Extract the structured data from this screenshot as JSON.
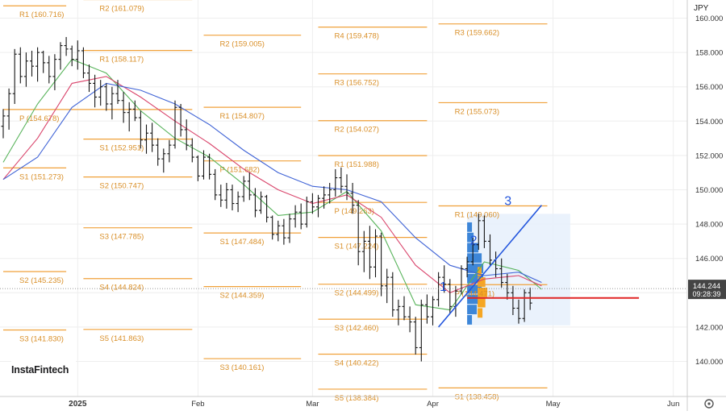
{
  "currency_label": "JPY",
  "watermark": "InstaFintech",
  "current_price": "144.244",
  "countdown": "09:28:39",
  "settings_icon": "gear-icon",
  "colors": {
    "pivot": "#f0a13a",
    "pivot_text": "#d98f28",
    "ma_fast": "#57b35a",
    "ma_mid": "#d9446b",
    "ma_slow": "#3f63d6",
    "candle": "#141414",
    "profile_blue": "#3d86d8",
    "profile_orange": "#f5a623",
    "channel": "#2255dd",
    "poc": "#e02424",
    "price_badge": "#444444"
  },
  "chart_data": {
    "type": "ohlc",
    "title": "",
    "xlabel": "",
    "ylabel": "",
    "ylim": [
      138.4,
      161.0
    ],
    "yticks": [
      "140.000",
      "142.000",
      "144.000",
      "146.000",
      "148.000",
      "150.000",
      "152.000",
      "154.000",
      "156.000",
      "158.000",
      "160.000"
    ],
    "x_labels": [
      "2025",
      "Feb",
      "Mar",
      "Apr",
      "May",
      "Jun"
    ],
    "x_label_bars": [
      13,
      34,
      54,
      75,
      96,
      117
    ],
    "pivots": [
      {
        "label": "R1 (160.716)",
        "value": 160.716,
        "b0": 0,
        "b1": 11
      },
      {
        "label": "R2 (161.079)",
        "value": 161.079,
        "b0": 14,
        "b1": 33
      },
      {
        "label": "R1 (158.117)",
        "value": 158.117,
        "b0": 14,
        "b1": 33
      },
      {
        "label": "P (154.678)",
        "value": 154.678,
        "b0": 0,
        "b1": 33
      },
      {
        "label": "S1 (152.951)",
        "value": 152.951,
        "b0": 14,
        "b1": 33
      },
      {
        "label": "S1 (151.273)",
        "value": 151.273,
        "b0": 0,
        "b1": 11
      },
      {
        "label": "S2 (150.747)",
        "value": 150.747,
        "b0": 14,
        "b1": 33
      },
      {
        "label": "S3 (147.785)",
        "value": 147.785,
        "b0": 14,
        "b1": 33
      },
      {
        "label": "S2 (145.235)",
        "value": 145.235,
        "b0": 0,
        "b1": 11
      },
      {
        "label": "S4 (144.824)",
        "value": 144.824,
        "b0": 14,
        "b1": 33
      },
      {
        "label": "S3 (141.830)",
        "value": 141.83,
        "b0": 0,
        "b1": 11
      },
      {
        "label": "S5 (141.863)",
        "value": 141.863,
        "b0": 14,
        "b1": 33
      },
      {
        "label": "R2 (159.005)",
        "value": 159.005,
        "b0": 35,
        "b1": 52
      },
      {
        "label": "R1 (154.807)",
        "value": 154.807,
        "b0": 35,
        "b1": 52
      },
      {
        "label": "P (151.682)",
        "value": 151.682,
        "b0": 35,
        "b1": 52
      },
      {
        "label": "S1 (147.484)",
        "value": 147.484,
        "b0": 35,
        "b1": 52
      },
      {
        "label": "S2 (144.359)",
        "value": 144.359,
        "b0": 35,
        "b1": 52
      },
      {
        "label": "S3 (140.161)",
        "value": 140.161,
        "b0": 35,
        "b1": 52
      },
      {
        "label": "R4 (159.478)",
        "value": 159.478,
        "b0": 55,
        "b1": 74
      },
      {
        "label": "R3 (156.752)",
        "value": 156.752,
        "b0": 55,
        "b1": 74
      },
      {
        "label": "R2 (154.027)",
        "value": 154.027,
        "b0": 55,
        "b1": 74
      },
      {
        "label": "R1 (151.988)",
        "value": 151.988,
        "b0": 55,
        "b1": 74
      },
      {
        "label": "P (149.263)",
        "value": 149.263,
        "b0": 55,
        "b1": 74
      },
      {
        "label": "S1 (147.224)",
        "value": 147.224,
        "b0": 55,
        "b1": 74
      },
      {
        "label": "S2 (144.499)",
        "value": 144.499,
        "b0": 55,
        "b1": 74
      },
      {
        "label": "S3 (142.460)",
        "value": 142.46,
        "b0": 55,
        "b1": 74
      },
      {
        "label": "S4 (140.422)",
        "value": 140.422,
        "b0": 55,
        "b1": 74
      },
      {
        "label": "S5 (138.384)",
        "value": 138.384,
        "b0": 55,
        "b1": 74
      },
      {
        "label": "R3 (159.662)",
        "value": 159.662,
        "b0": 76,
        "b1": 95
      },
      {
        "label": "R2 (155.073)",
        "value": 155.073,
        "b0": 76,
        "b1": 95
      },
      {
        "label": "R1 (149.060)",
        "value": 149.06,
        "b0": 76,
        "b1": 95
      },
      {
        "label": "P (144.471)",
        "value": 144.471,
        "b0": 76,
        "b1": 95
      },
      {
        "label": "S1 (138.458)",
        "value": 138.458,
        "b0": 76,
        "b1": 95
      }
    ],
    "current_line": 144.244,
    "poc_level": 143.7,
    "ohlc": [
      [
        153.7,
        154.7,
        153.0,
        154.3
      ],
      [
        154.3,
        155.9,
        153.5,
        155.6
      ],
      [
        155.6,
        158.2,
        155.0,
        157.9
      ],
      [
        157.9,
        158.3,
        156.2,
        156.6
      ],
      [
        156.6,
        158.0,
        156.0,
        157.5
      ],
      [
        157.5,
        158.1,
        156.6,
        157.2
      ],
      [
        157.2,
        158.3,
        156.3,
        158.0
      ],
      [
        158.0,
        158.1,
        156.8,
        157.4
      ],
      [
        157.4,
        157.8,
        156.2,
        156.6
      ],
      [
        156.6,
        157.9,
        155.8,
        157.6
      ],
      [
        157.6,
        158.6,
        157.0,
        158.4
      ],
      [
        158.4,
        158.9,
        157.8,
        158.2
      ],
      [
        158.2,
        158.4,
        157.2,
        157.6
      ],
      [
        157.6,
        158.7,
        157.0,
        158.1
      ],
      [
        158.1,
        158.3,
        156.5,
        156.8
      ],
      [
        156.8,
        157.3,
        155.7,
        156.2
      ],
      [
        156.2,
        156.7,
        154.8,
        155.4
      ],
      [
        155.4,
        156.4,
        154.9,
        156.0
      ],
      [
        156.0,
        156.2,
        154.6,
        155.0
      ],
      [
        155.0,
        156.0,
        154.1,
        155.6
      ],
      [
        155.6,
        156.4,
        155.0,
        155.2
      ],
      [
        155.2,
        155.7,
        153.9,
        154.5
      ],
      [
        154.5,
        155.1,
        153.4,
        154.7
      ],
      [
        154.7,
        155.2,
        154.0,
        154.2
      ],
      [
        154.2,
        154.6,
        152.4,
        152.9
      ],
      [
        152.9,
        153.8,
        152.1,
        153.3
      ],
      [
        153.3,
        153.9,
        152.2,
        152.6
      ],
      [
        152.6,
        153.0,
        151.4,
        151.8
      ],
      [
        151.8,
        152.4,
        151.0,
        152.1
      ],
      [
        152.1,
        152.9,
        151.6,
        152.6
      ],
      [
        152.6,
        155.2,
        152.4,
        154.8
      ],
      [
        154.8,
        155.0,
        153.1,
        153.5
      ],
      [
        153.5,
        154.1,
        152.3,
        152.6
      ],
      [
        152.6,
        153.0,
        151.6,
        151.9
      ],
      [
        151.9,
        152.0,
        150.5,
        150.8
      ],
      [
        150.8,
        152.3,
        150.6,
        151.9
      ],
      [
        151.9,
        152.1,
        150.6,
        150.9
      ],
      [
        150.9,
        151.2,
        149.4,
        149.7
      ],
      [
        149.7,
        150.3,
        149.0,
        149.4
      ],
      [
        149.4,
        150.4,
        148.9,
        150.0
      ],
      [
        150.0,
        150.3,
        148.8,
        149.2
      ],
      [
        149.2,
        149.9,
        148.7,
        149.6
      ],
      [
        149.6,
        150.8,
        149.3,
        150.5
      ],
      [
        150.5,
        151.0,
        149.4,
        149.7
      ],
      [
        149.7,
        150.1,
        148.4,
        148.8
      ],
      [
        148.8,
        149.9,
        148.6,
        149.6
      ],
      [
        149.6,
        149.7,
        148.1,
        148.4
      ],
      [
        148.4,
        148.5,
        147.1,
        147.4
      ],
      [
        147.4,
        148.2,
        147.0,
        147.9
      ],
      [
        147.9,
        148.3,
        146.8,
        147.2
      ],
      [
        147.2,
        148.6,
        146.9,
        148.3
      ],
      [
        148.3,
        149.1,
        147.8,
        148.7
      ],
      [
        148.7,
        149.2,
        147.7,
        148.0
      ],
      [
        148.0,
        149.6,
        147.8,
        149.3
      ],
      [
        149.3,
        149.8,
        148.6,
        149.0
      ],
      [
        149.0,
        149.7,
        148.4,
        149.5
      ],
      [
        149.5,
        150.2,
        148.9,
        149.7
      ],
      [
        149.7,
        150.4,
        149.2,
        150.0
      ],
      [
        150.0,
        151.2,
        149.6,
        150.7
      ],
      [
        150.7,
        151.3,
        149.8,
        150.2
      ],
      [
        150.2,
        150.9,
        149.4,
        149.8
      ],
      [
        149.8,
        150.4,
        148.6,
        149.1
      ],
      [
        149.1,
        149.4,
        145.6,
        146.4
      ],
      [
        146.4,
        147.6,
        145.2,
        147.0
      ],
      [
        147.0,
        147.9,
        144.8,
        145.5
      ],
      [
        145.5,
        147.7,
        144.9,
        147.3
      ],
      [
        147.3,
        147.5,
        143.8,
        144.4
      ],
      [
        144.4,
        145.4,
        143.4,
        144.9
      ],
      [
        144.9,
        145.2,
        142.6,
        143.0
      ],
      [
        143.0,
        143.6,
        142.1,
        143.2
      ],
      [
        143.2,
        143.8,
        142.4,
        142.6
      ],
      [
        142.6,
        143.2,
        141.7,
        142.3
      ],
      [
        142.3,
        142.6,
        140.4,
        140.8
      ],
      [
        140.8,
        143.6,
        140.0,
        143.3
      ],
      [
        143.3,
        143.9,
        142.2,
        142.6
      ],
      [
        142.6,
        143.8,
        142.1,
        143.6
      ],
      [
        143.6,
        145.2,
        143.2,
        144.9
      ],
      [
        144.9,
        145.6,
        144.0,
        144.5
      ],
      [
        144.5,
        144.8,
        142.8,
        143.2
      ],
      [
        143.2,
        144.4,
        142.6,
        144.1
      ],
      [
        144.1,
        145.6,
        143.9,
        145.4
      ],
      [
        145.4,
        146.1,
        144.9,
        145.8
      ],
      [
        145.8,
        147.2,
        145.6,
        146.8
      ],
      [
        146.8,
        148.6,
        146.5,
        148.2
      ],
      [
        148.2,
        148.5,
        146.6,
        147.0
      ],
      [
        147.0,
        147.4,
        145.6,
        145.9
      ],
      [
        145.9,
        146.4,
        144.9,
        145.4
      ],
      [
        145.4,
        146.0,
        144.3,
        144.6
      ],
      [
        144.6,
        145.1,
        143.6,
        144.0
      ],
      [
        144.0,
        144.4,
        142.7,
        143.1
      ],
      [
        143.1,
        143.6,
        142.2,
        142.5
      ],
      [
        142.5,
        144.2,
        142.3,
        144.0
      ],
      [
        144.0,
        144.3,
        143.0,
        143.4
      ]
    ],
    "series": [
      {
        "name": "",
        "color": "#57b35a",
        "values": [
          [
            0,
            151.6
          ],
          [
            6,
            155.0
          ],
          [
            12,
            157.6
          ],
          [
            18,
            156.8
          ],
          [
            24,
            154.6
          ],
          [
            30,
            153.0
          ],
          [
            36,
            151.9
          ],
          [
            42,
            150.3
          ],
          [
            48,
            148.5
          ],
          [
            54,
            148.7
          ],
          [
            60,
            149.9
          ],
          [
            66,
            147.6
          ],
          [
            72,
            143.3
          ],
          [
            78,
            143.0
          ],
          [
            84,
            145.8
          ],
          [
            90,
            145.3
          ],
          [
            94,
            144.2
          ]
        ]
      },
      {
        "name": "",
        "color": "#d9446b",
        "values": [
          [
            0,
            150.6
          ],
          [
            6,
            153.0
          ],
          [
            12,
            156.2
          ],
          [
            18,
            156.6
          ],
          [
            24,
            155.4
          ],
          [
            30,
            154.0
          ],
          [
            36,
            152.7
          ],
          [
            42,
            151.2
          ],
          [
            48,
            150.0
          ],
          [
            54,
            149.2
          ],
          [
            60,
            149.7
          ],
          [
            66,
            148.4
          ],
          [
            72,
            145.6
          ],
          [
            78,
            144.0
          ],
          [
            84,
            144.8
          ],
          [
            90,
            145.0
          ],
          [
            94,
            144.4
          ]
        ]
      },
      {
        "name": "",
        "color": "#3f63d6",
        "values": [
          [
            0,
            150.6
          ],
          [
            6,
            151.9
          ],
          [
            12,
            154.8
          ],
          [
            18,
            156.2
          ],
          [
            24,
            155.8
          ],
          [
            30,
            155.0
          ],
          [
            36,
            153.8
          ],
          [
            42,
            152.3
          ],
          [
            48,
            151.0
          ],
          [
            54,
            150.2
          ],
          [
            60,
            150.0
          ],
          [
            66,
            149.3
          ],
          [
            72,
            147.2
          ],
          [
            78,
            145.6
          ],
          [
            84,
            145.0
          ],
          [
            90,
            145.2
          ],
          [
            94,
            144.6
          ]
        ]
      }
    ],
    "channel": [
      [
        76,
        142.0
      ],
      [
        94,
        149.1
      ]
    ],
    "channel_labels": [
      {
        "text": "1",
        "bar": 76.2,
        "y": 144.1
      },
      {
        "text": "2",
        "bar": 81.5,
        "y": 146.8
      },
      {
        "text": "3",
        "bar": 87.5,
        "y": 149.1
      }
    ],
    "profile": {
      "bar_start": 81,
      "bar_end": 99,
      "y_top": 148.6,
      "y_bottom": 142.1,
      "blue_rows": [
        [
          147.8,
          0.3
        ],
        [
          147.2,
          0.4
        ],
        [
          146.6,
          0.7
        ],
        [
          146.0,
          0.9
        ],
        [
          145.4,
          1.0
        ],
        [
          144.8,
          1.0
        ],
        [
          144.2,
          0.9
        ],
        [
          143.6,
          0.8
        ],
        [
          143.0,
          0.6
        ],
        [
          142.4,
          0.3
        ]
      ],
      "orange_rows": [
        [
          145.2,
          0.4
        ],
        [
          144.6,
          0.8
        ],
        [
          144.0,
          1.0
        ],
        [
          143.4,
          0.8
        ],
        [
          142.8,
          0.5
        ]
      ]
    }
  }
}
